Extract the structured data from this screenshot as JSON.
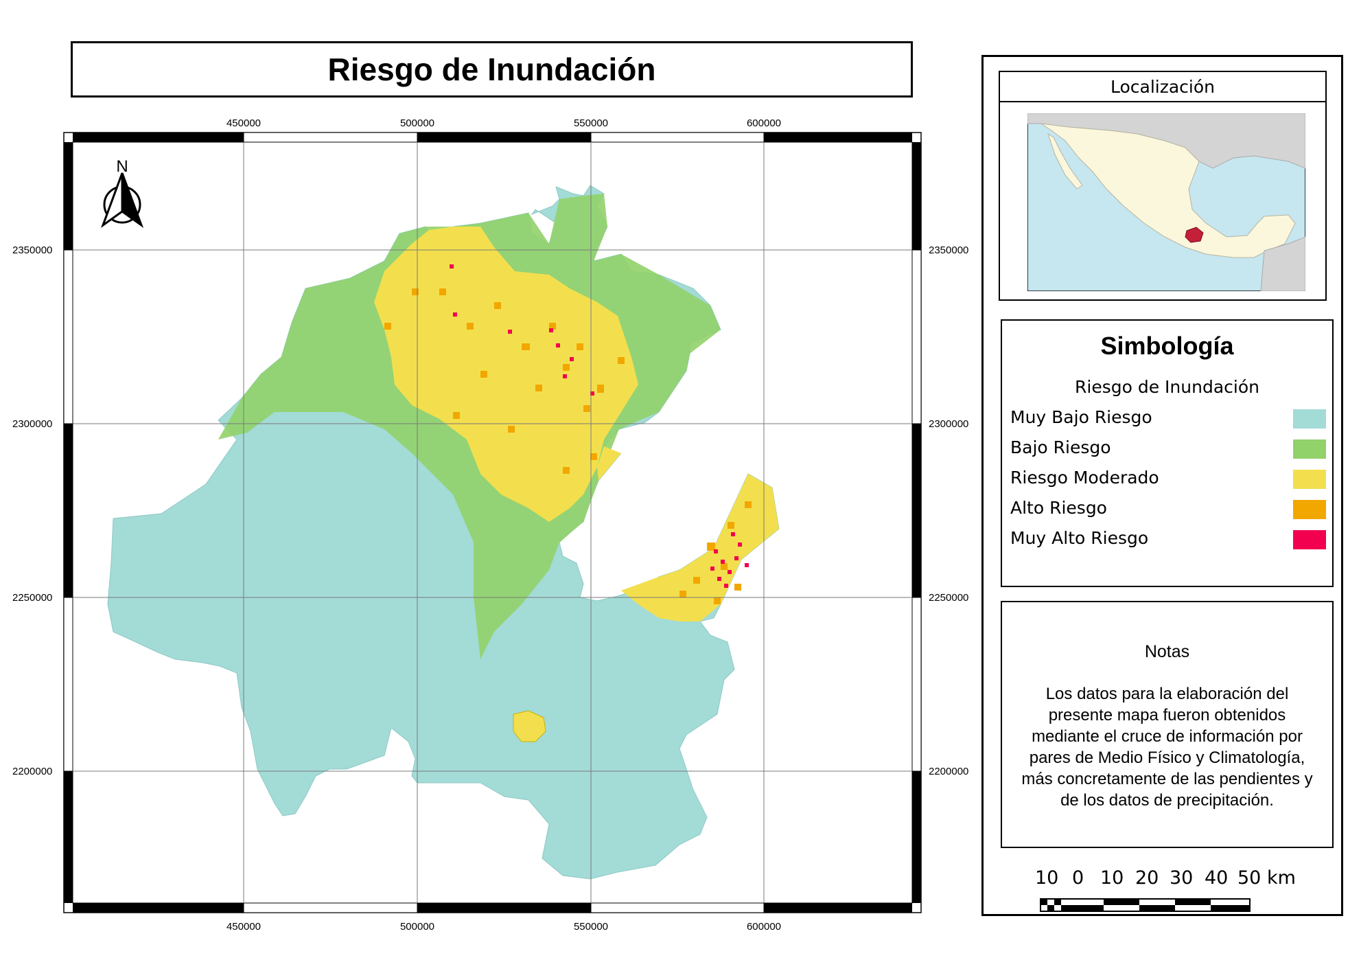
{
  "title": "Riesgo de Inundación",
  "grid": {
    "x_labels": [
      "450000",
      "500000",
      "550000",
      "600000"
    ],
    "y_labels": [
      "2350000",
      "2300000",
      "2250000",
      "2200000"
    ]
  },
  "north_arrow": {
    "label": "N"
  },
  "localizacion": {
    "title": "Localización"
  },
  "simbologia": {
    "title": "Simbología",
    "subtitle": "Riesgo de Inundación",
    "items": [
      {
        "label": "Muy Bajo Riesgo",
        "color": "#a3dbd7"
      },
      {
        "label": "Bajo Riesgo",
        "color": "#91d26a"
      },
      {
        "label": "Riesgo Moderado",
        "color": "#f3df4d"
      },
      {
        "label": "Alto Riesgo",
        "color": "#f2a700"
      },
      {
        "label": "Muy Alto Riesgo",
        "color": "#f2004f"
      }
    ]
  },
  "notas": {
    "title": "Notas",
    "lines": [
      "Los datos para la elaboración del",
      "presente mapa fueron obtenidos",
      "mediante el cruce de información por",
      "pares de Medio Físico y Climatología,",
      "más concretamente de las pendientes y",
      "de los datos de precipitación."
    ]
  },
  "scale_bar": {
    "labels": [
      "10",
      "0",
      "10",
      "20",
      "30",
      "40",
      "50 km"
    ]
  }
}
